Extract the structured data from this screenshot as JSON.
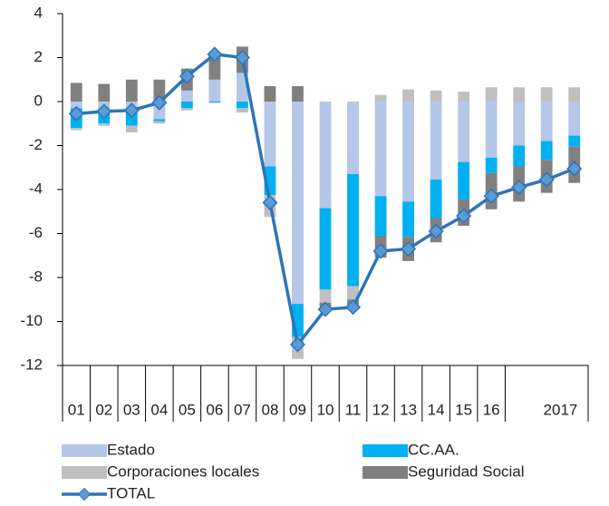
{
  "chart_data": {
    "type": "bar",
    "stacked": true,
    "categories": [
      "01",
      "02",
      "03",
      "04",
      "05",
      "06",
      "07",
      "08",
      "09",
      "10",
      "11",
      "12",
      "13",
      "14",
      "15",
      "16",
      null,
      null,
      "2017"
    ],
    "ylim": [
      -12,
      4
    ],
    "yticks": [
      -12,
      -10,
      -8,
      -6,
      -4,
      -2,
      0,
      2,
      4
    ],
    "series": [
      {
        "name": "Estado",
        "type": "bar",
        "color": "#b4c7e7",
        "values": [
          -0.3,
          -0.3,
          -0.3,
          -0.8,
          0.5,
          1.0,
          1.3,
          -2.95,
          -9.2,
          -4.85,
          -3.3,
          -4.3,
          -4.55,
          -3.55,
          -2.75,
          -2.55,
          -2.0,
          -1.8,
          -1.55
        ]
      },
      {
        "name": "CC.AA.",
        "type": "bar",
        "color": "#00b0f0",
        "values": [
          -0.9,
          -0.7,
          -0.8,
          -0.1,
          -0.3,
          -0.05,
          -0.3,
          -1.3,
          -1.5,
          -3.7,
          -5.1,
          -1.8,
          -1.6,
          -1.75,
          -1.7,
          -0.7,
          -0.95,
          -0.85,
          -0.5
        ]
      },
      {
        "name": "Corporaciones locales",
        "type": "bar",
        "color": "#bfbfbf",
        "values": [
          -0.1,
          -0.1,
          -0.3,
          -0.1,
          -0.1,
          0,
          -0.2,
          -1.0,
          -1.0,
          -0.6,
          -0.6,
          0.3,
          0.55,
          0.5,
          0.45,
          0.65,
          0.65,
          0.65,
          0.65
        ]
      },
      {
        "name": "Seguridad Social",
        "type": "bar",
        "color": "#808080",
        "values": [
          0.85,
          0.8,
          1.0,
          1.0,
          1.0,
          1.15,
          1.2,
          0.7,
          0.7,
          -0.3,
          -0.4,
          -1.0,
          -1.1,
          -1.1,
          -1.2,
          -1.65,
          -1.6,
          -1.5,
          -1.65
        ]
      },
      {
        "name": "TOTAL",
        "type": "line",
        "color": "#2e75b6",
        "marker_color": "#5b9bd5",
        "values": [
          -0.55,
          -0.45,
          -0.4,
          -0.05,
          1.15,
          2.15,
          2.0,
          -4.6,
          -11.05,
          -9.45,
          -9.35,
          -6.8,
          -6.7,
          -5.9,
          -5.2,
          -4.3,
          -3.9,
          -3.55,
          -3.05
        ]
      }
    ]
  }
}
